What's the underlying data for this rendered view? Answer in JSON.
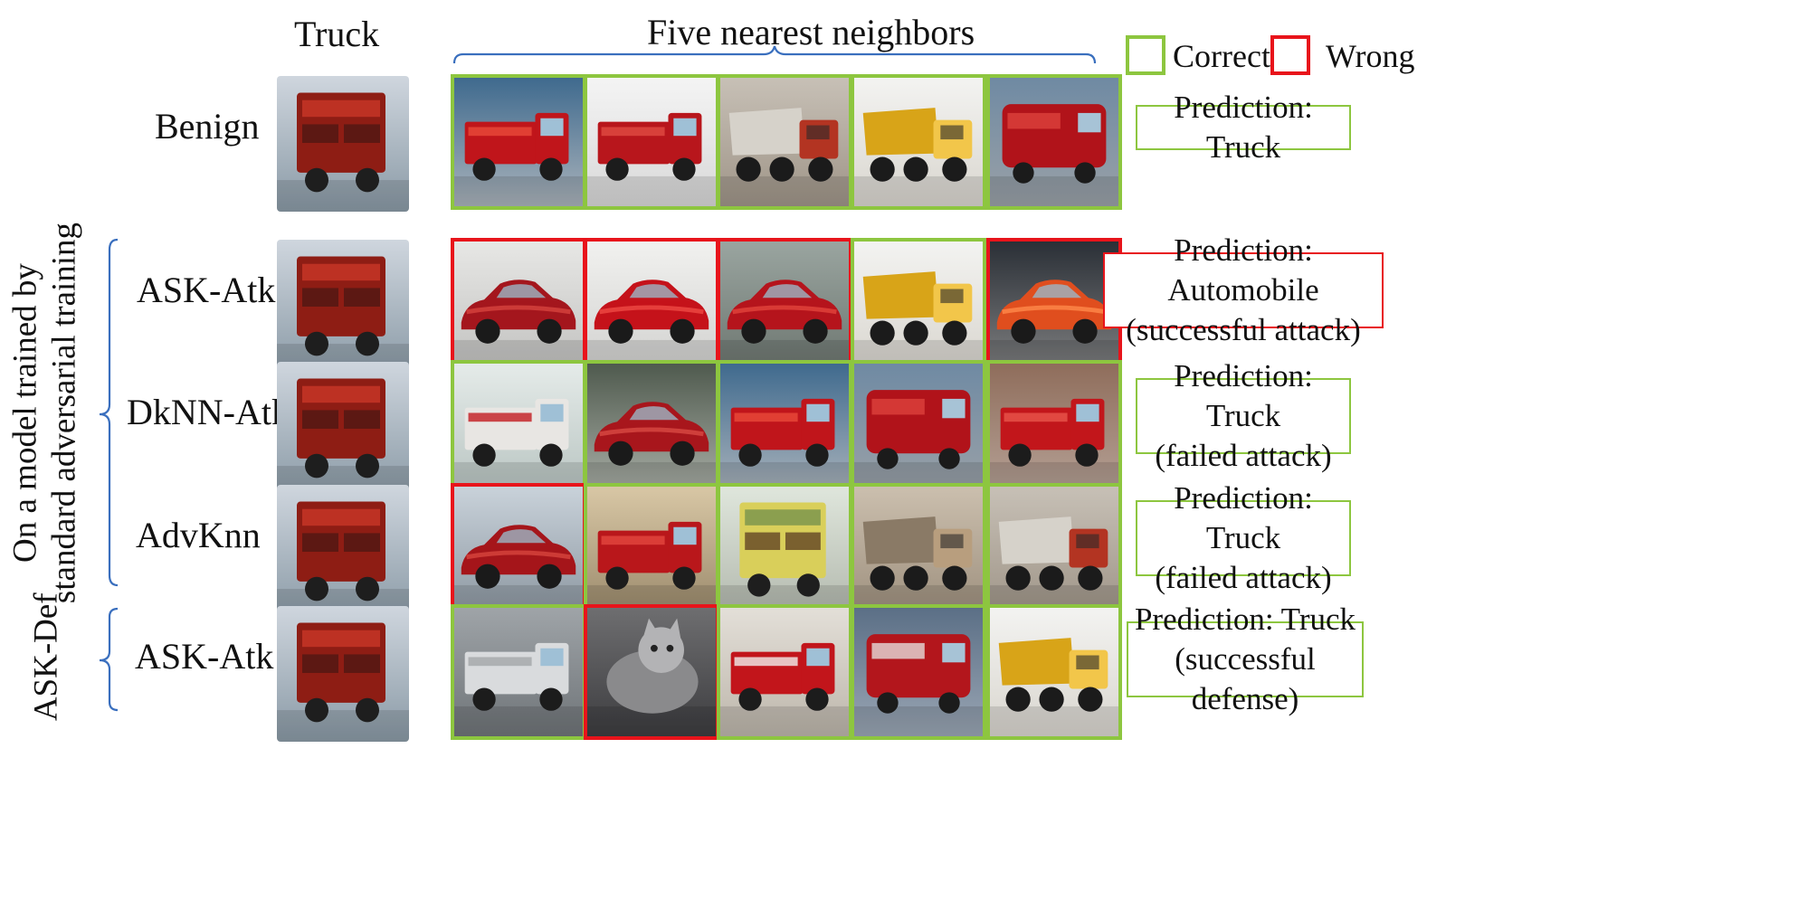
{
  "header": {
    "query_title": "Truck",
    "neighbors_title": "Five nearest neighbors"
  },
  "legend": {
    "correct_label": "Correct",
    "wrong_label": "Wrong",
    "correct_color": "#8dc63f",
    "wrong_color": "#e8141b"
  },
  "groups": {
    "standard": "On a model trained by\nstandard adversarial training",
    "standard_line1": "On a model trained by",
    "standard_line2": "standard adversarial training",
    "defense": "ASK-Def"
  },
  "rows": [
    {
      "label": "Benign",
      "query_image": "red-truck",
      "neighbors": [
        {
          "image": "red-fire-truck",
          "status": "correct"
        },
        {
          "image": "red-tow-truck",
          "status": "correct"
        },
        {
          "image": "white-dump-truck",
          "status": "correct"
        },
        {
          "image": "yellow-dump-truck",
          "status": "correct"
        },
        {
          "image": "red-van",
          "status": "correct"
        }
      ],
      "prediction": {
        "line1": "Prediction: Truck",
        "line2": "",
        "status": "correct"
      }
    },
    {
      "label": "ASK-Atk",
      "query_image": "red-truck",
      "neighbors": [
        {
          "image": "red-classic-car",
          "status": "wrong"
        },
        {
          "image": "red-sports-car",
          "status": "wrong"
        },
        {
          "image": "red-car-with-person",
          "status": "wrong"
        },
        {
          "image": "yellow-dump-truck",
          "status": "correct"
        },
        {
          "image": "orange-sports-car",
          "status": "wrong"
        }
      ],
      "prediction": {
        "line1": "Prediction: Automobile",
        "line2": "(successful attack)",
        "status": "wrong"
      }
    },
    {
      "label": "DkNN-Atk",
      "query_image": "red-truck",
      "neighbors": [
        {
          "image": "white-red-fire-truck",
          "status": "correct"
        },
        {
          "image": "red-pickup-truck",
          "status": "correct"
        },
        {
          "image": "red-fire-truck",
          "status": "correct"
        },
        {
          "image": "red-van",
          "status": "correct"
        },
        {
          "image": "red-fire-truck-ladder",
          "status": "correct"
        }
      ],
      "prediction": {
        "line1": "Prediction: Truck",
        "line2": "(failed attack)",
        "status": "correct"
      }
    },
    {
      "label": "AdvKnn",
      "query_image": "red-truck",
      "neighbors": [
        {
          "image": "red-sedan",
          "status": "wrong"
        },
        {
          "image": "fire-truck-garage",
          "status": "correct"
        },
        {
          "image": "yellow-cargo-truck",
          "status": "correct"
        },
        {
          "image": "loaded-flatbed-truck",
          "status": "correct"
        },
        {
          "image": "white-dump-truck",
          "status": "correct"
        }
      ],
      "prediction": {
        "line1": "Prediction: Truck",
        "line2": "(failed attack)",
        "status": "correct"
      }
    },
    {
      "label": "ASK-Atk",
      "query_image": "red-truck",
      "neighbors": [
        {
          "image": "white-semi-truck",
          "status": "correct"
        },
        {
          "image": "grey-cat",
          "status": "wrong"
        },
        {
          "image": "red-fire-engine",
          "status": "correct"
        },
        {
          "image": "fire-truck-front",
          "status": "correct"
        },
        {
          "image": "yellow-dump-truck",
          "status": "correct"
        }
      ],
      "prediction": {
        "line1": "Prediction: Truck",
        "line2": "(successful defense)",
        "status": "correct"
      }
    }
  ]
}
